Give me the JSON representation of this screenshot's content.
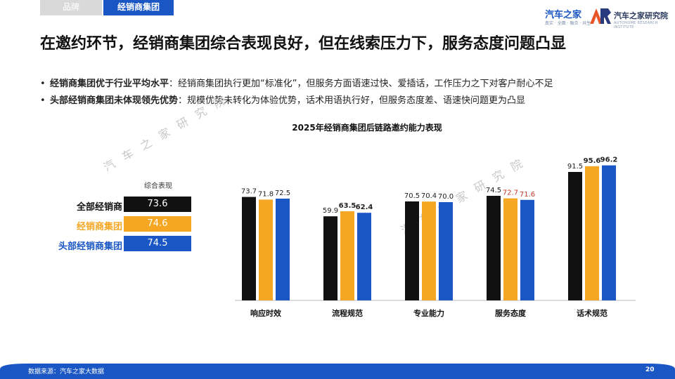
{
  "tabs": [
    {
      "label": "品牌",
      "active": false
    },
    {
      "label": "经销商集团",
      "active": true
    }
  ],
  "logos": {
    "autohome": "汽车之家",
    "autohome_sub": "真实 · 全面 · 融合 · 共生",
    "institute": "汽车之家研究院",
    "institute_sub": "AUTOHOME RESEARCH INSTITUTE"
  },
  "headline": "在邀约环节，经销商集团综合表现良好，但在线索压力下，服务态度问题凸显",
  "bullets": [
    {
      "bold": "经销商集团优于行业平均水平",
      "text": "：经销商集团执行更加“标准化”，但服务方面语速过快、爱插话，工作压力之下对客户耐心不足"
    },
    {
      "bold": "头部经销商集团未体现领先优势",
      "text": "：规模优势未转化为体验优势，话术用语执行好，但服务态度差、语速快问题更为凸显"
    }
  ],
  "watermark": "汽车之家研究院",
  "overall": {
    "title": "综合表现",
    "rows": [
      {
        "label": "全部经销商",
        "value": "73.6",
        "color": "#111111"
      },
      {
        "label": "经销商集团",
        "value": "74.6",
        "color": "#f5a623"
      },
      {
        "label": "头部经销商集团",
        "value": "74.5",
        "color": "#1a56c4"
      }
    ]
  },
  "chart_data": {
    "type": "bar",
    "title": "2025年经销商集团后链路邀约能力表现",
    "categories": [
      "响应时效",
      "流程规范",
      "专业能力",
      "服务态度",
      "话术规范"
    ],
    "series": [
      {
        "name": "全部经销商",
        "color": "#111111",
        "values": [
          73.7,
          59.9,
          70.5,
          74.5,
          91.5
        ]
      },
      {
        "name": "经销商集团",
        "color": "#f5a623",
        "values": [
          71.8,
          63.5,
          70.4,
          72.7,
          95.6
        ]
      },
      {
        "name": "头部经销商集团",
        "color": "#1a56c4",
        "values": [
          72.5,
          62.4,
          70.0,
          71.6,
          96.2
        ]
      }
    ],
    "label_styles": [
      [
        "normal",
        "normal",
        "normal"
      ],
      [
        "normal",
        "bold",
        "bold"
      ],
      [
        "normal",
        "normal",
        "normal"
      ],
      [
        "normal",
        "red",
        "red"
      ],
      [
        "normal",
        "bold",
        "bold"
      ]
    ],
    "ylim": [
      0,
      100
    ],
    "grid": false,
    "legend": "left"
  },
  "footer": {
    "source": "数据来源：汽车之家大数据",
    "page": "20",
    "color": "#1a56c4"
  }
}
